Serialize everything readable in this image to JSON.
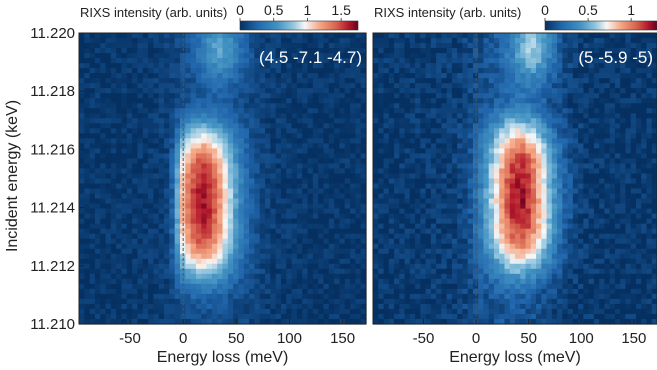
{
  "chart_data": {
    "type": "heatmap",
    "shared": {
      "ylabel": "Incident energy (keV)",
      "xlabel": "Energy loss (meV)",
      "colorbar_label": "RIXS intensity (arb. units)",
      "colormap": "RdBu_r",
      "ylim": [
        11.21,
        11.22
      ],
      "yticks": [
        "11.210",
        "11.212",
        "11.214",
        "11.216",
        "11.218",
        "11.220"
      ],
      "ytick_values": [
        11.21,
        11.212,
        11.214,
        11.216,
        11.218,
        11.22
      ],
      "xlim": [
        -98,
        172
      ],
      "xticks": [
        "-50",
        "0",
        "50",
        "100",
        "150"
      ],
      "xtick_values": [
        -50,
        0,
        50,
        100,
        150
      ],
      "reference_line_x": 0
    },
    "panels": [
      {
        "annotation": "(4.5 -7.1 -4.7)",
        "colorbar_ticks": [
          "0",
          "0.5",
          "1",
          "1.5"
        ],
        "colorbar_tick_values": [
          0,
          0.5,
          1,
          1.5
        ],
        "clim": [
          0,
          1.75
        ],
        "peak": {
          "energy_loss": 18,
          "incident_energy": 11.2142,
          "intensity": 1.7
        }
      },
      {
        "annotation": "(5 -5.9 -5)",
        "colorbar_ticks": [
          "0",
          "0.5",
          "1"
        ],
        "colorbar_tick_values": [
          0,
          0.5,
          1
        ],
        "clim": [
          0,
          1.3
        ],
        "peak": {
          "energy_loss": 42,
          "incident_energy": 11.2144,
          "intensity": 1.25
        }
      }
    ]
  }
}
